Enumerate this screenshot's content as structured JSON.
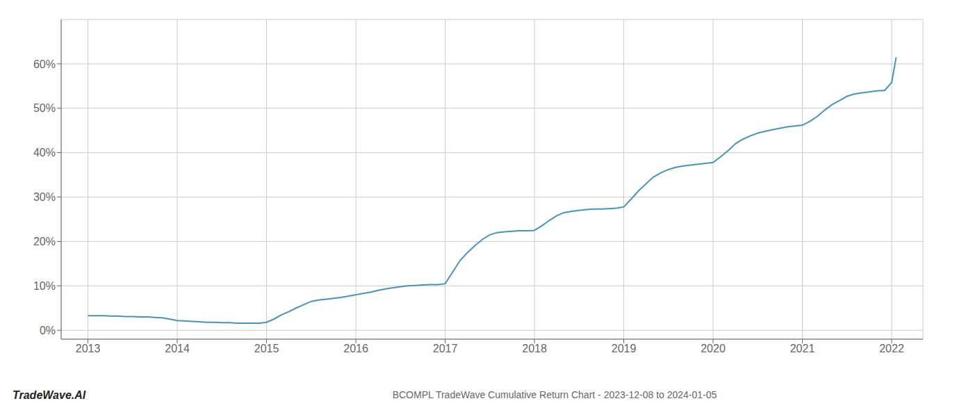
{
  "chart_data": {
    "type": "line",
    "title": "BCOMPL TradeWave Cumulative Return Chart - 2023-12-08 to 2024-01-05",
    "annotations": [
      "TradeWave.AI"
    ],
    "color": "#4393c3",
    "grid": true,
    "x": [
      2013.0,
      2013.08,
      2013.17,
      2013.25,
      2013.33,
      2013.42,
      2013.5,
      2013.58,
      2013.67,
      2013.75,
      2013.83,
      2013.92,
      2014.0,
      2014.08,
      2014.17,
      2014.25,
      2014.33,
      2014.42,
      2014.5,
      2014.58,
      2014.67,
      2014.75,
      2014.83,
      2014.92,
      2015.0,
      2015.08,
      2015.17,
      2015.25,
      2015.33,
      2015.42,
      2015.5,
      2015.58,
      2015.67,
      2015.75,
      2015.83,
      2015.92,
      2016.0,
      2016.08,
      2016.17,
      2016.25,
      2016.33,
      2016.42,
      2016.5,
      2016.58,
      2016.67,
      2016.75,
      2016.83,
      2016.92,
      2017.0,
      2017.08,
      2017.17,
      2017.25,
      2017.33,
      2017.42,
      2017.5,
      2017.58,
      2017.67,
      2017.75,
      2017.83,
      2017.92,
      2018.0,
      2018.08,
      2018.17,
      2018.25,
      2018.33,
      2018.42,
      2018.5,
      2018.58,
      2018.67,
      2018.75,
      2018.83,
      2018.92,
      2019.0,
      2019.08,
      2019.17,
      2019.25,
      2019.33,
      2019.42,
      2019.5,
      2019.58,
      2019.67,
      2019.75,
      2019.83,
      2019.92,
      2020.0,
      2020.08,
      2020.17,
      2020.25,
      2020.33,
      2020.42,
      2020.5,
      2020.58,
      2020.67,
      2020.75,
      2020.83,
      2020.92,
      2021.0,
      2021.08,
      2021.17,
      2021.25,
      2021.33,
      2021.42,
      2021.5,
      2021.58,
      2021.67,
      2021.75,
      2021.83,
      2021.92,
      2022.0,
      2022.05
    ],
    "values": [
      0.033,
      0.033,
      0.033,
      0.032,
      0.032,
      0.031,
      0.031,
      0.03,
      0.03,
      0.029,
      0.028,
      0.025,
      0.022,
      0.021,
      0.02,
      0.019,
      0.018,
      0.018,
      0.017,
      0.017,
      0.016,
      0.016,
      0.016,
      0.016,
      0.018,
      0.025,
      0.035,
      0.042,
      0.05,
      0.058,
      0.065,
      0.068,
      0.07,
      0.072,
      0.074,
      0.077,
      0.08,
      0.083,
      0.086,
      0.09,
      0.093,
      0.096,
      0.098,
      0.1,
      0.101,
      0.102,
      0.103,
      0.103,
      0.105,
      0.13,
      0.158,
      0.175,
      0.19,
      0.205,
      0.215,
      0.22,
      0.222,
      0.223,
      0.224,
      0.224,
      0.225,
      0.235,
      0.248,
      0.258,
      0.265,
      0.268,
      0.27,
      0.272,
      0.273,
      0.273,
      0.274,
      0.275,
      0.278,
      0.295,
      0.315,
      0.33,
      0.345,
      0.355,
      0.362,
      0.367,
      0.37,
      0.372,
      0.374,
      0.376,
      0.378,
      0.39,
      0.405,
      0.42,
      0.43,
      0.438,
      0.444,
      0.448,
      0.452,
      0.455,
      0.458,
      0.46,
      0.462,
      0.47,
      0.482,
      0.496,
      0.508,
      0.518,
      0.527,
      0.532,
      0.535,
      0.537,
      0.539,
      0.54,
      0.558,
      0.615
    ],
    "xlim": [
      2012.7,
      2022.35
    ],
    "xticks": [
      2013,
      2014,
      2015,
      2016,
      2017,
      2018,
      2019,
      2020,
      2021,
      2022
    ],
    "ylim": [
      -0.02,
      0.7
    ],
    "yticks": [
      {
        "value": 0.0,
        "label": "0%"
      },
      {
        "value": 0.1,
        "label": "10%"
      },
      {
        "value": 0.2,
        "label": "20%"
      },
      {
        "value": 0.3,
        "label": "30%"
      },
      {
        "value": 0.4,
        "label": "40%"
      },
      {
        "value": 0.5,
        "label": "50%"
      },
      {
        "value": 0.6,
        "label": "60%"
      }
    ]
  }
}
